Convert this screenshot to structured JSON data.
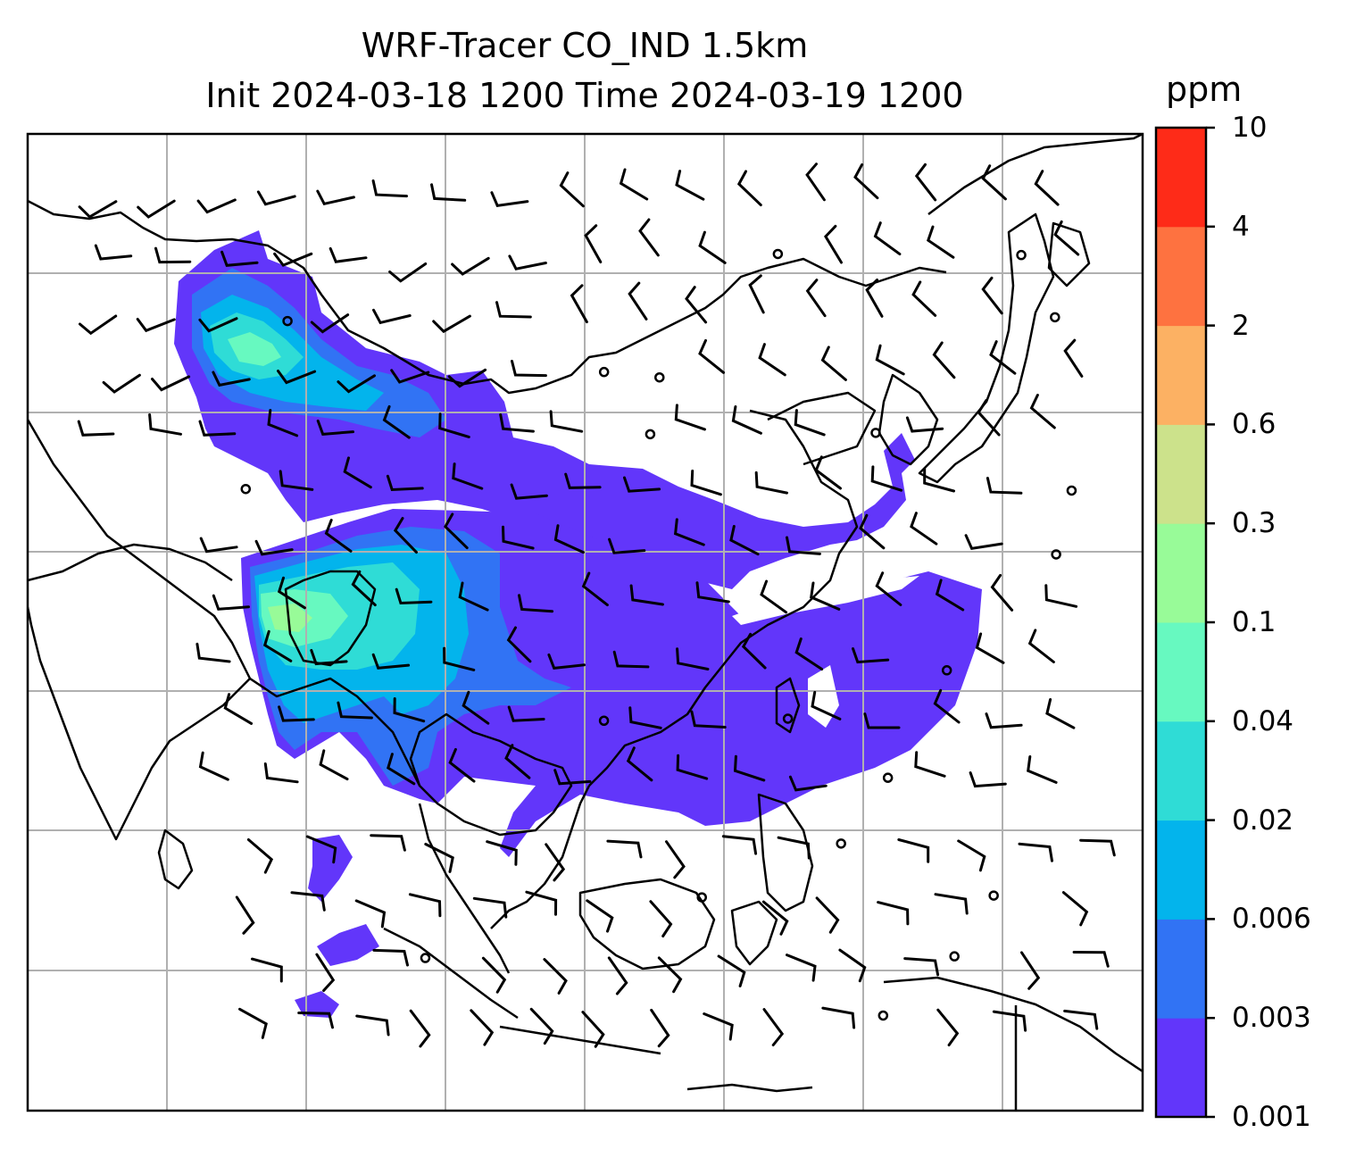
{
  "title": {
    "line1": "WRF-Tracer CO_IND 1.5km",
    "line2": "Init 2024-03-18 1200 Time 2024-03-19 1200"
  },
  "colorbar": {
    "unit": "ppm",
    "levels": [
      "0.001",
      "0.003",
      "0.006",
      "0.02",
      "0.04",
      "0.1",
      "0.3",
      "0.6",
      "2",
      "4",
      "10"
    ],
    "colors": [
      "#6236fa",
      "#3173f4",
      "#03b4ec",
      "#2fdcd6",
      "#67f9c0",
      "#98fb98",
      "#cce28b",
      "#fcb163",
      "#fe7240",
      "#fe2b18"
    ]
  },
  "map": {
    "plume_colors": {
      "lowest": "#6236fa",
      "low": "#3173f4",
      "medium": "#03b4ec",
      "high": "#2fdcd6",
      "higher": "#67f9c0",
      "highest": "#98fb98"
    },
    "gridline_color": "#b0b0b0",
    "coastline_color": "#000000",
    "wind_barbs": true
  }
}
